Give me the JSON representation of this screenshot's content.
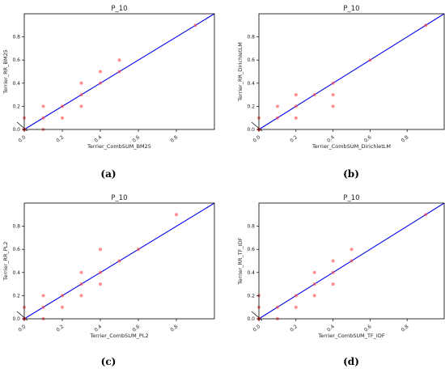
{
  "colors": {
    "diagonal": "#0000ee",
    "points": "#ff4444",
    "origin_points": "#1f6f5f"
  },
  "chart_data": [
    {
      "type": "scatter",
      "title": "P_10",
      "xlabel": "Terrier_CombSUM_BM25",
      "ylabel": "Terrier_RR_BM25",
      "caption": "(a)",
      "xlim": [
        0,
        1.0
      ],
      "ylim": [
        0,
        1.0
      ],
      "xticks": [
        "0.0",
        "0.2",
        "0.4",
        "0.6",
        "0.8"
      ],
      "yticks": [
        "0.0",
        "0.2",
        "0.4",
        "0.6",
        "0.8"
      ],
      "grid": false,
      "reference_line": "y = x",
      "points": [
        [
          0,
          0
        ],
        [
          0,
          0.1
        ],
        [
          0.1,
          0.2
        ],
        [
          0.1,
          0
        ],
        [
          0.1,
          0.1
        ],
        [
          0.2,
          0.2
        ],
        [
          0.2,
          0.1
        ],
        [
          0.3,
          0.4
        ],
        [
          0.3,
          0.3
        ],
        [
          0.3,
          0.2
        ],
        [
          0.4,
          0.4
        ],
        [
          0.4,
          0.5
        ],
        [
          0.5,
          0.6
        ],
        [
          0.5,
          0.5
        ],
        [
          0.9,
          0.9
        ]
      ]
    },
    {
      "type": "scatter",
      "title": "P_10",
      "xlabel": "Terrier_CombSUM_DirichletLM",
      "ylabel": "Terrier_RR_DirichletLM",
      "caption": "(b)",
      "xlim": [
        0,
        1.0
      ],
      "ylim": [
        0,
        1.0
      ],
      "xticks": [
        "0.0",
        "0.2",
        "0.4",
        "0.6",
        "0.8"
      ],
      "yticks": [
        "0.0",
        "0.2",
        "0.4",
        "0.6",
        "0.8"
      ],
      "grid": false,
      "reference_line": "y = x",
      "points": [
        [
          0,
          0
        ],
        [
          0,
          0.1
        ],
        [
          0.1,
          0.1
        ],
        [
          0.1,
          0.2
        ],
        [
          0.2,
          0.3
        ],
        [
          0.2,
          0.2
        ],
        [
          0.2,
          0.1
        ],
        [
          0.3,
          0.3
        ],
        [
          0.4,
          0.4
        ],
        [
          0.4,
          0.3
        ],
        [
          0.4,
          0.2
        ],
        [
          0.6,
          0.6
        ],
        [
          0.9,
          0.9
        ]
      ]
    },
    {
      "type": "scatter",
      "title": "P_10",
      "xlabel": "Terrier_CombSUM_PL2",
      "ylabel": "Terrier_RR_PL2",
      "caption": "(c)",
      "xlim": [
        0,
        1.0
      ],
      "ylim": [
        0,
        1.0
      ],
      "xticks": [
        "0.0",
        "0.2",
        "0.4",
        "0.6",
        "0.8"
      ],
      "yticks": [
        "0.0",
        "0.2",
        "0.4",
        "0.6",
        "0.8"
      ],
      "grid": false,
      "reference_line": "y = x",
      "points": [
        [
          0,
          0
        ],
        [
          0,
          0.1
        ],
        [
          0.1,
          0.2
        ],
        [
          0.1,
          0.1
        ],
        [
          0.1,
          0
        ],
        [
          0.2,
          0.2
        ],
        [
          0.2,
          0.1
        ],
        [
          0.3,
          0.4
        ],
        [
          0.3,
          0.3
        ],
        [
          0.3,
          0.2
        ],
        [
          0.4,
          0.6
        ],
        [
          0.4,
          0.4
        ],
        [
          0.4,
          0.3
        ],
        [
          0.5,
          0.5
        ],
        [
          0.6,
          0.6
        ],
        [
          0.8,
          0.9
        ]
      ]
    },
    {
      "type": "scatter",
      "title": "P_10",
      "xlabel": "Terrier_CombSUM_TF_IDF",
      "ylabel": "Terrier_RR_TF_IDF",
      "caption": "(d)",
      "xlim": [
        0,
        1.0
      ],
      "ylim": [
        0,
        1.0
      ],
      "xticks": [
        "0.0",
        "0.2",
        "0.4",
        "0.6",
        "0.8"
      ],
      "yticks": [
        "0.0",
        "0.2",
        "0.4",
        "0.6",
        "0.8"
      ],
      "grid": false,
      "reference_line": "y = x",
      "points": [
        [
          0,
          0
        ],
        [
          0,
          0.1
        ],
        [
          0,
          0.2
        ],
        [
          0.1,
          0
        ],
        [
          0.1,
          0.1
        ],
        [
          0.2,
          0.2
        ],
        [
          0.2,
          0.1
        ],
        [
          0.3,
          0.4
        ],
        [
          0.3,
          0.3
        ],
        [
          0.3,
          0.2
        ],
        [
          0.4,
          0.5
        ],
        [
          0.4,
          0.4
        ],
        [
          0.4,
          0.3
        ],
        [
          0.5,
          0.6
        ],
        [
          0.5,
          0.5
        ],
        [
          0.9,
          0.9
        ]
      ]
    }
  ]
}
